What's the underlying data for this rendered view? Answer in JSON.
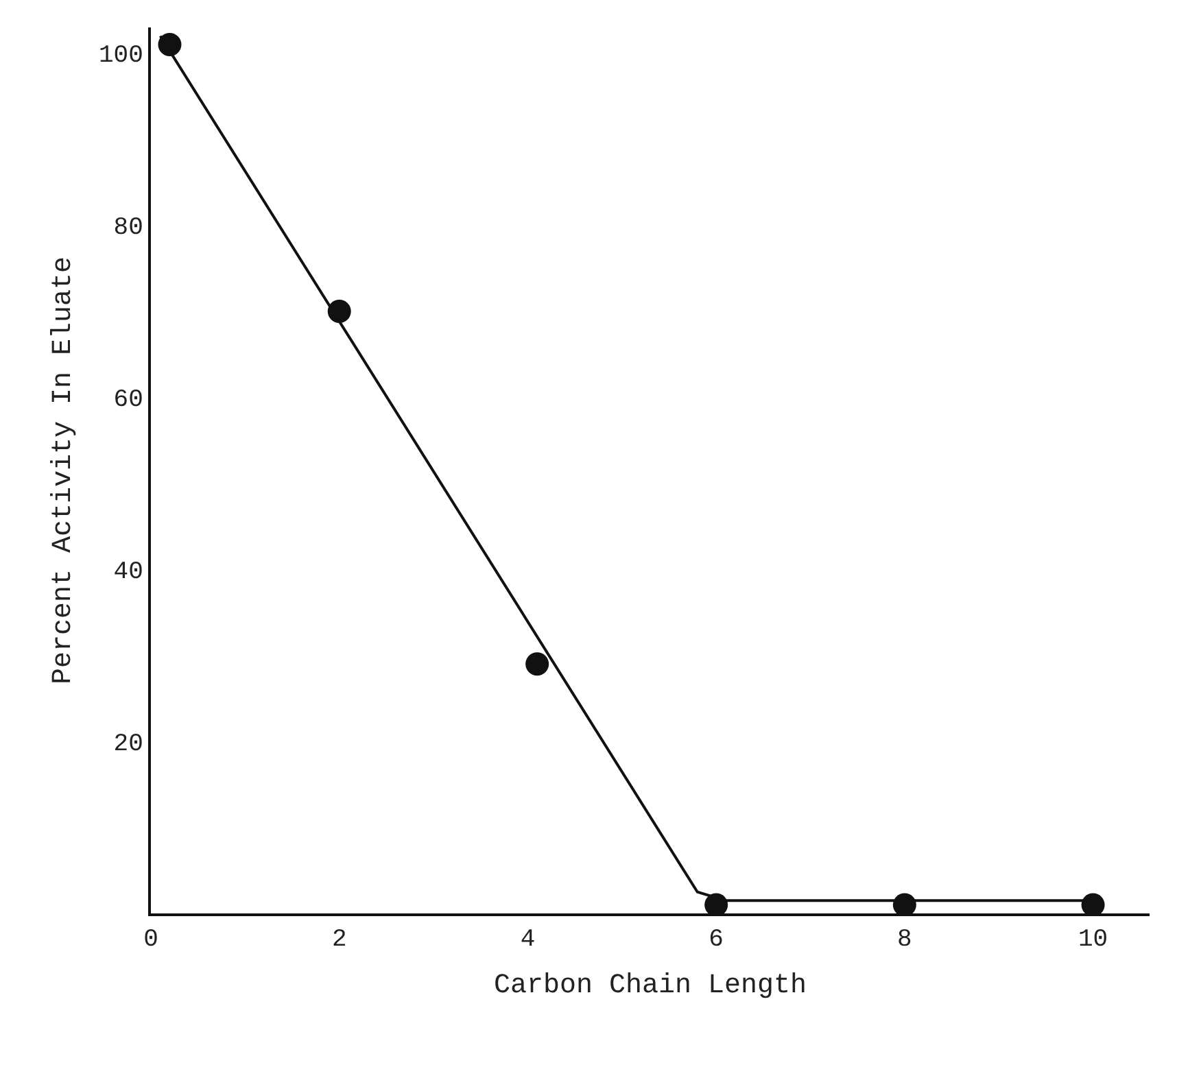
{
  "chart_data": {
    "type": "scatter",
    "xlabel": "Carbon Chain Length",
    "ylabel": "Percent Activity In Eluate",
    "xlim": [
      0,
      10.6
    ],
    "ylim": [
      0,
      103
    ],
    "xticks": [
      0,
      2,
      4,
      6,
      8,
      10
    ],
    "yticks": [
      20,
      40,
      60,
      80,
      100
    ],
    "series": [
      {
        "color": "#111111",
        "marker": "circle",
        "x": [
          0.2,
          2,
          4.1,
          6,
          8,
          10
        ],
        "values": [
          101,
          70,
          29,
          1,
          1,
          1
        ]
      },
      {
        "type": "line",
        "color": "#111111",
        "line_style": "solid",
        "marker": "none",
        "x": [
          0.1,
          5.8,
          6.1,
          10
        ],
        "values": [
          102,
          2.5,
          1.5,
          1.5
        ]
      }
    ]
  }
}
